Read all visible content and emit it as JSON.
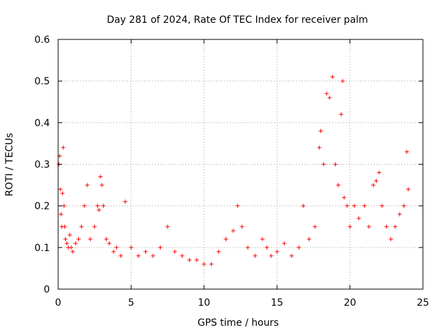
{
  "chart_data": {
    "type": "scatter",
    "title": "Day 281 of 2024, Rate Of TEC Index for receiver palm",
    "xlabel": "GPS time / hours",
    "ylabel": "ROTI / TECUs",
    "xlim": [
      0,
      25
    ],
    "ylim": [
      0,
      0.6
    ],
    "xticks": [
      0,
      5,
      10,
      15,
      20,
      25
    ],
    "xtick_labels": [
      "0",
      "5",
      "10",
      "15",
      "20",
      "25"
    ],
    "yticks": [
      0,
      0.1,
      0.2,
      0.3,
      0.4,
      0.5,
      0.6
    ],
    "ytick_labels": [
      "0",
      "0.1",
      "0.2",
      "0.3",
      "0.4",
      "0.5",
      "0.6"
    ],
    "grid": true,
    "marker": "+",
    "color": "#ff0000",
    "series": [
      {
        "x": [
          0.05,
          0.1,
          0.15,
          0.2,
          0.25,
          0.3,
          0.35,
          0.4,
          0.45,
          0.5,
          0.6,
          0.7,
          0.8,
          0.9,
          1.0,
          1.2,
          1.4,
          1.6,
          1.8,
          2.0,
          2.2,
          2.5,
          2.7,
          2.8,
          2.9,
          3.0,
          3.1,
          3.3,
          3.5,
          3.8,
          4.0,
          4.3,
          4.6,
          5.0,
          5.5,
          6.0,
          6.5,
          7.0,
          7.5,
          8.0,
          8.5,
          9.0,
          9.5,
          10.0,
          10.5,
          11.0,
          11.5,
          12.0,
          12.3,
          12.6,
          13.0,
          13.5,
          14.0,
          14.3,
          14.6,
          15.0,
          15.5,
          16.0,
          16.5,
          16.8,
          17.2,
          17.6,
          17.9,
          18.0,
          18.2,
          18.4,
          18.6,
          18.8,
          19.0,
          19.2,
          19.4,
          19.5,
          19.6,
          19.8,
          20.0,
          20.3,
          20.6,
          21.0,
          21.3,
          21.6,
          21.8,
          22.0,
          22.2,
          22.5,
          22.8,
          23.1,
          23.4,
          23.7,
          23.9,
          24.0
        ],
        "y": [
          0.3,
          0.32,
          0.24,
          0.18,
          0.15,
          0.23,
          0.34,
          0.2,
          0.15,
          0.12,
          0.11,
          0.1,
          0.13,
          0.1,
          0.09,
          0.11,
          0.12,
          0.15,
          0.2,
          0.25,
          0.12,
          0.15,
          0.2,
          0.19,
          0.27,
          0.25,
          0.2,
          0.12,
          0.11,
          0.09,
          0.1,
          0.08,
          0.21,
          0.1,
          0.08,
          0.09,
          0.08,
          0.1,
          0.15,
          0.09,
          0.08,
          0.07,
          0.07,
          0.06,
          0.06,
          0.09,
          0.12,
          0.14,
          0.2,
          0.15,
          0.1,
          0.08,
          0.12,
          0.1,
          0.08,
          0.09,
          0.11,
          0.08,
          0.1,
          0.2,
          0.12,
          0.15,
          0.34,
          0.38,
          0.3,
          0.47,
          0.46,
          0.51,
          0.3,
          0.25,
          0.42,
          0.5,
          0.22,
          0.2,
          0.15,
          0.2,
          0.17,
          0.2,
          0.15,
          0.25,
          0.26,
          0.28,
          0.2,
          0.15,
          0.12,
          0.15,
          0.18,
          0.2,
          0.33,
          0.24
        ]
      }
    ]
  }
}
